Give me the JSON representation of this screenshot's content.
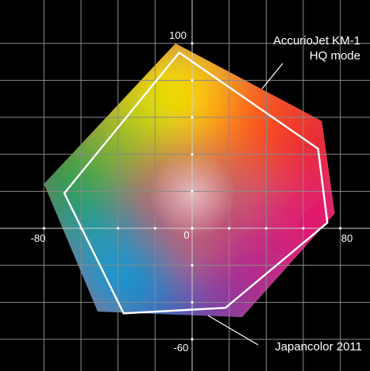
{
  "chart_data": {
    "type": "scatter",
    "title": "",
    "xlabel": "",
    "ylabel": "",
    "x_range": [
      -93,
      93
    ],
    "y_range": [
      -70,
      110
    ],
    "grid": true,
    "tick_labels": {
      "x_min": "-80",
      "origin": "0",
      "x_max": "80",
      "y_max": "100",
      "y_min": "-60"
    },
    "series": [
      {
        "name": "AccurioJet KM-1 HQ mode",
        "label_lines": [
          "AccurioJet KM-1",
          "HQ mode"
        ],
        "style": "filled",
        "points": [
          [
            -9,
            100
          ],
          [
            70,
            58
          ],
          [
            77,
            8
          ],
          [
            27,
            -48
          ],
          [
            -51,
            -45
          ],
          [
            -80,
            24
          ]
        ]
      },
      {
        "name": "Japancolor 2011",
        "label_lines": [
          "Japancolor 2011"
        ],
        "style": "outline",
        "color": "#ffffff",
        "points": [
          [
            -7,
            95
          ],
          [
            68,
            43
          ],
          [
            73,
            3
          ],
          [
            18,
            -43
          ],
          [
            -37,
            -46
          ],
          [
            -69,
            19
          ]
        ]
      }
    ],
    "background": "#000000",
    "grid_color": "#8a8a8a"
  }
}
